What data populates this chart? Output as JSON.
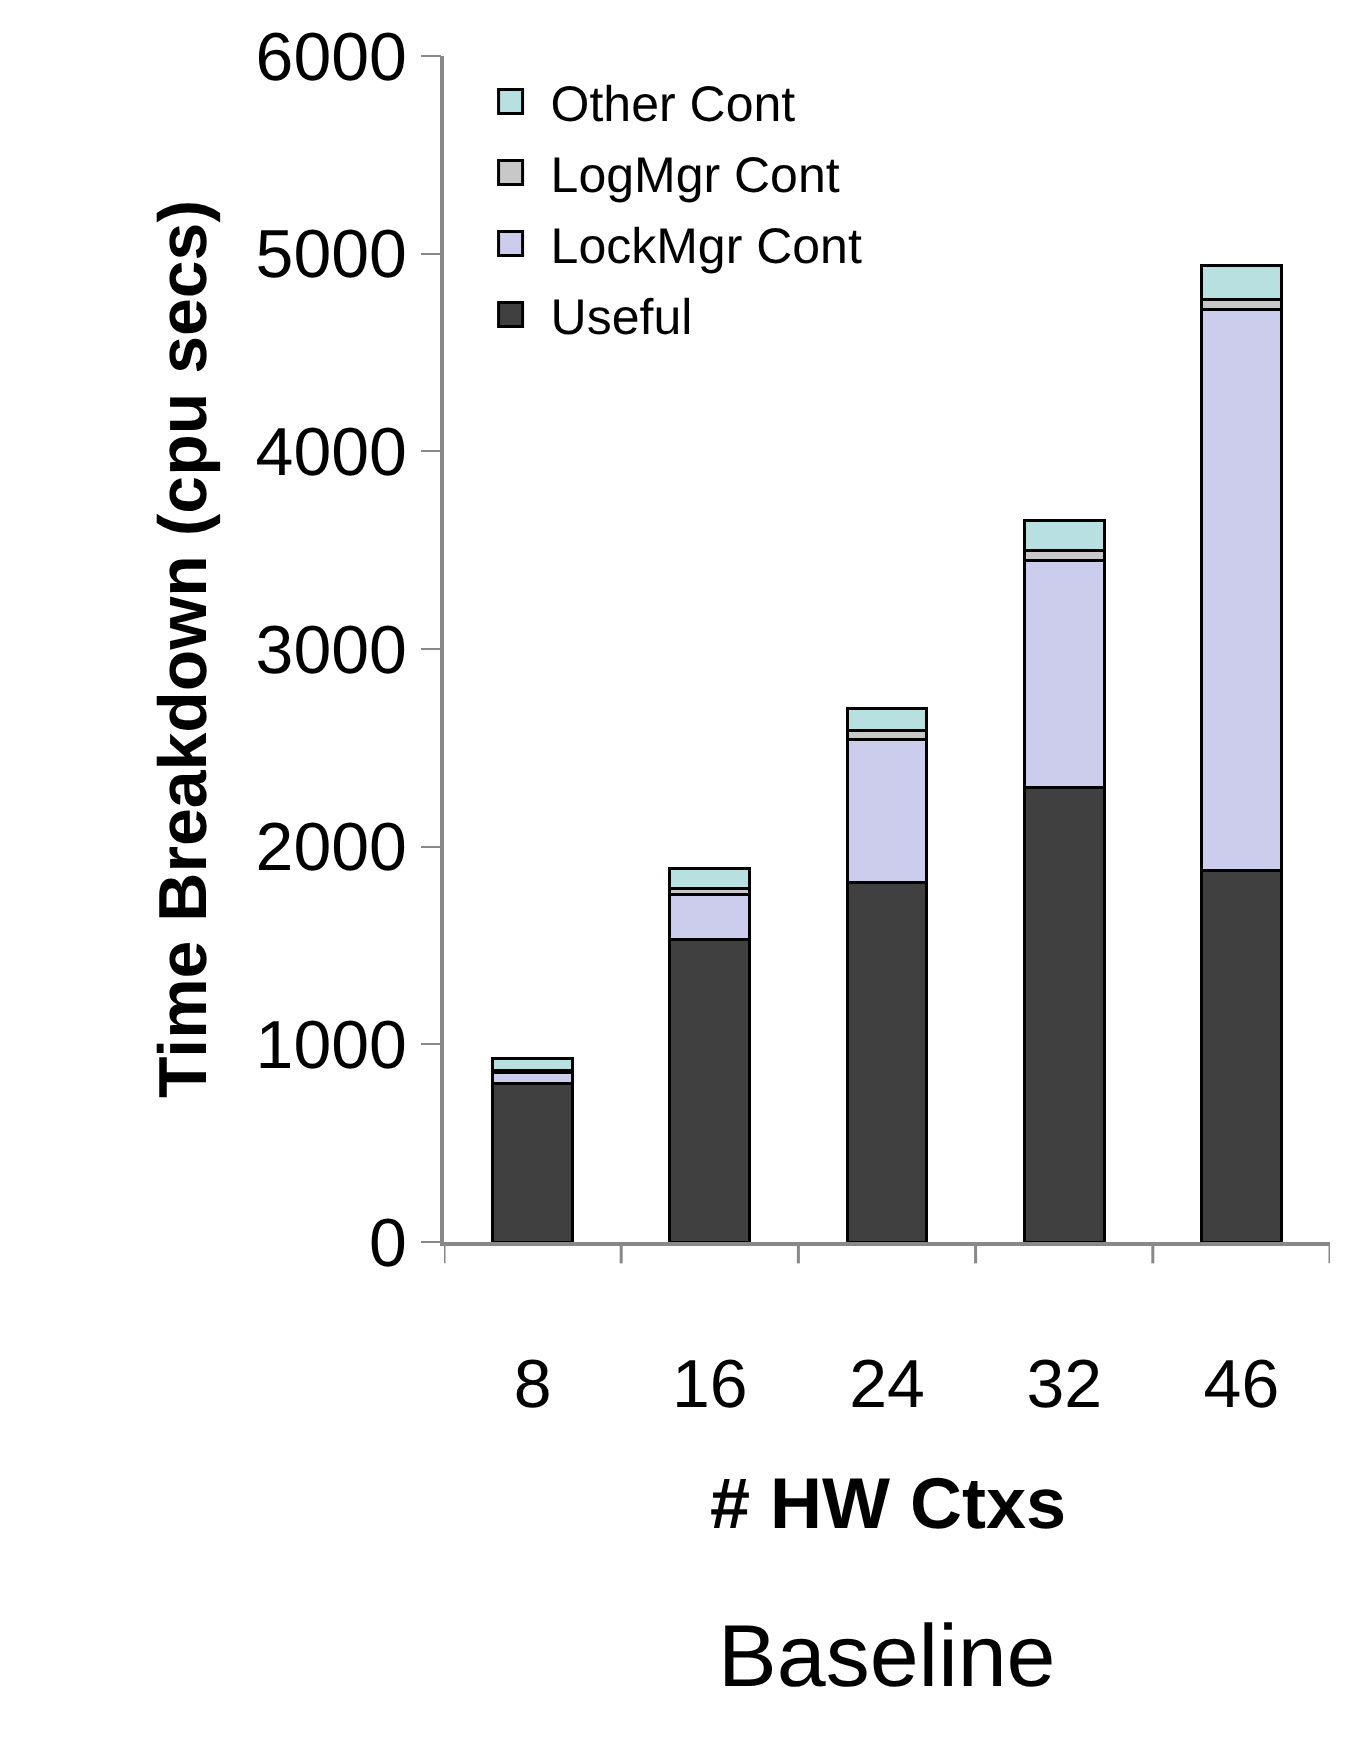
{
  "chart_data": {
    "type": "bar",
    "title": "Baseline",
    "xlabel": "# HW Ctxs",
    "ylabel": "Time Breakdown (cpu secs)",
    "categories": [
      "8",
      "16",
      "24",
      "32",
      "46"
    ],
    "stacked": true,
    "series": [
      {
        "name": "Useful",
        "color": "#404040",
        "values": [
          800,
          1530,
          1820,
          2300,
          1880
        ]
      },
      {
        "name": "LockMgr Cont",
        "color": "#ccccec",
        "values": [
          60,
          230,
          720,
          1150,
          2840
        ]
      },
      {
        "name": "LogMgr Cont",
        "color": "#c8c8c8",
        "values": [
          10,
          30,
          50,
          50,
          50
        ]
      },
      {
        "name": "Other Cont",
        "color": "#b8e0e0",
        "values": [
          60,
          100,
          110,
          150,
          170
        ]
      }
    ],
    "ylim": [
      0,
      6000
    ],
    "yticks": [
      0,
      1000,
      2000,
      3000,
      4000,
      5000,
      6000
    ],
    "grid": false,
    "legend": "top left"
  }
}
